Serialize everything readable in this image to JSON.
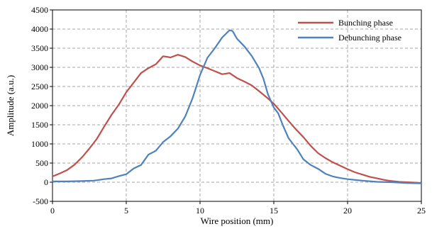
{
  "chart_data": {
    "type": "line",
    "xlabel": "Wire position (mm)",
    "ylabel": "Amplitude (a.u.)",
    "xlim": [
      0,
      25
    ],
    "ylim": [
      -500,
      4500
    ],
    "xticks": [
      0,
      5,
      10,
      15,
      20,
      25
    ],
    "yticks": [
      -500,
      0,
      500,
      1000,
      1500,
      2000,
      2500,
      3000,
      3500,
      4000,
      4500
    ],
    "grid": "dashed",
    "legend_position": "top-right",
    "series": [
      {
        "name": "Bunching phase",
        "color": "#c0504d",
        "points": [
          [
            0,
            150
          ],
          [
            0.5,
            230
          ],
          [
            1,
            320
          ],
          [
            1.5,
            460
          ],
          [
            2,
            650
          ],
          [
            2.5,
            880
          ],
          [
            3,
            1130
          ],
          [
            3.5,
            1450
          ],
          [
            4,
            1760
          ],
          [
            4.5,
            2030
          ],
          [
            5,
            2350
          ],
          [
            5.5,
            2600
          ],
          [
            6,
            2850
          ],
          [
            6.5,
            2980
          ],
          [
            7,
            3080
          ],
          [
            7.5,
            3290
          ],
          [
            8,
            3260
          ],
          [
            8.5,
            3330
          ],
          [
            9,
            3270
          ],
          [
            9.5,
            3150
          ],
          [
            10,
            3050
          ],
          [
            10.5,
            2980
          ],
          [
            11,
            2900
          ],
          [
            11.5,
            2820
          ],
          [
            12,
            2850
          ],
          [
            12.5,
            2720
          ],
          [
            13,
            2630
          ],
          [
            13.5,
            2530
          ],
          [
            14,
            2380
          ],
          [
            14.5,
            2220
          ],
          [
            15,
            2050
          ],
          [
            15.5,
            1830
          ],
          [
            16,
            1600
          ],
          [
            16.5,
            1380
          ],
          [
            17,
            1180
          ],
          [
            17.5,
            950
          ],
          [
            18,
            760
          ],
          [
            18.5,
            630
          ],
          [
            19,
            520
          ],
          [
            19.5,
            430
          ],
          [
            20,
            340
          ],
          [
            20.5,
            260
          ],
          [
            21,
            200
          ],
          [
            21.5,
            140
          ],
          [
            22,
            100
          ],
          [
            22.5,
            60
          ],
          [
            23,
            30
          ],
          [
            23.5,
            10
          ],
          [
            24,
            0
          ],
          [
            24.5,
            -10
          ],
          [
            25,
            -20
          ]
        ]
      },
      {
        "name": "Debunching phase",
        "color": "#4f81bd",
        "points": [
          [
            0,
            20
          ],
          [
            1,
            20
          ],
          [
            2,
            30
          ],
          [
            2.8,
            40
          ],
          [
            3.5,
            80
          ],
          [
            4,
            100
          ],
          [
            4.5,
            160
          ],
          [
            5,
            210
          ],
          [
            5.5,
            360
          ],
          [
            6,
            450
          ],
          [
            6.5,
            720
          ],
          [
            7,
            820
          ],
          [
            7.5,
            1050
          ],
          [
            8,
            1200
          ],
          [
            8.5,
            1400
          ],
          [
            9,
            1720
          ],
          [
            9.5,
            2200
          ],
          [
            10,
            2800
          ],
          [
            10.5,
            3250
          ],
          [
            11,
            3500
          ],
          [
            11.5,
            3780
          ],
          [
            12,
            3970
          ],
          [
            12.2,
            3950
          ],
          [
            12.5,
            3750
          ],
          [
            13,
            3550
          ],
          [
            13.5,
            3300
          ],
          [
            14,
            2980
          ],
          [
            14.3,
            2700
          ],
          [
            14.6,
            2300
          ],
          [
            15,
            1950
          ],
          [
            15.3,
            1800
          ],
          [
            15.6,
            1500
          ],
          [
            16,
            1150
          ],
          [
            16.3,
            1000
          ],
          [
            16.6,
            850
          ],
          [
            17,
            600
          ],
          [
            17.5,
            450
          ],
          [
            18,
            350
          ],
          [
            18.5,
            220
          ],
          [
            19,
            150
          ],
          [
            19.5,
            110
          ],
          [
            20,
            80
          ],
          [
            21,
            40
          ],
          [
            22,
            10
          ],
          [
            23,
            0
          ],
          [
            24,
            -20
          ],
          [
            25,
            -30
          ]
        ]
      }
    ]
  }
}
